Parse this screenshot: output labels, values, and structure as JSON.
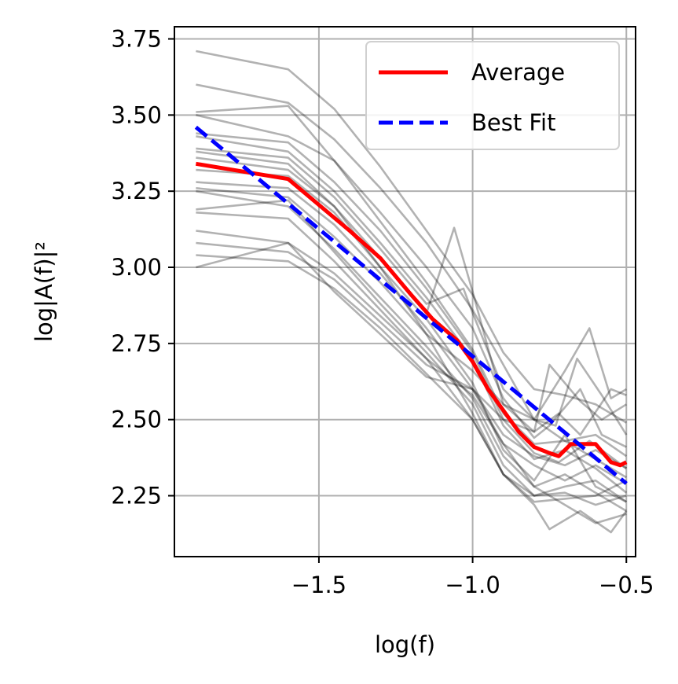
{
  "chart_data": {
    "type": "line",
    "xlabel": "log(f)",
    "ylabel": "log|A(f)|²",
    "xlim": [
      -1.97,
      -0.47
    ],
    "ylim": [
      2.05,
      3.79
    ],
    "xticks": [
      -1.5,
      -1.0,
      -0.5
    ],
    "xtick_labels": [
      "−1.5",
      "−1.0",
      "−0.5"
    ],
    "yticks": [
      2.25,
      2.5,
      2.75,
      3.0,
      3.25,
      3.5,
      3.75
    ],
    "ytick_labels": [
      "2.25",
      "2.50",
      "2.75",
      "3.00",
      "3.25",
      "3.50",
      "3.75"
    ],
    "grid": true,
    "legend_position": "top-right",
    "series": [
      {
        "name": "Average",
        "color": "#ff0000",
        "style": "solid",
        "points": [
          [
            -1.9,
            3.34
          ],
          [
            -1.6,
            3.29
          ],
          [
            -1.4,
            3.12
          ],
          [
            -1.3,
            3.03
          ],
          [
            -1.2,
            2.91
          ],
          [
            -1.13,
            2.83
          ],
          [
            -1.05,
            2.76
          ],
          [
            -1.0,
            2.69
          ],
          [
            -0.95,
            2.6
          ],
          [
            -0.9,
            2.53
          ],
          [
            -0.85,
            2.46
          ],
          [
            -0.8,
            2.41
          ],
          [
            -0.75,
            2.39
          ],
          [
            -0.72,
            2.38
          ],
          [
            -0.68,
            2.42
          ],
          [
            -0.65,
            2.42
          ],
          [
            -0.6,
            2.42
          ],
          [
            -0.55,
            2.36
          ],
          [
            -0.52,
            2.35
          ],
          [
            -0.5,
            2.36
          ]
        ]
      },
      {
        "name": "Best Fit",
        "color": "#0000ff",
        "style": "dashed",
        "points": [
          [
            -1.9,
            3.46
          ],
          [
            -0.5,
            2.29
          ]
        ]
      }
    ],
    "background_series_color": "#000000",
    "background_series": [
      [
        [
          -1.9,
          3.71
        ],
        [
          -1.6,
          3.65
        ],
        [
          -1.45,
          3.52
        ],
        [
          -1.3,
          3.33
        ],
        [
          -1.15,
          3.12
        ],
        [
          -1.0,
          2.91
        ],
        [
          -0.9,
          2.72
        ],
        [
          -0.8,
          2.6
        ],
        [
          -0.7,
          2.58
        ],
        [
          -0.6,
          2.55
        ],
        [
          -0.5,
          2.49
        ]
      ],
      [
        [
          -1.9,
          3.6
        ],
        [
          -1.6,
          3.54
        ],
        [
          -1.45,
          3.42
        ],
        [
          -1.3,
          3.26
        ],
        [
          -1.15,
          3.08
        ],
        [
          -1.0,
          2.86
        ],
        [
          -0.9,
          2.68
        ],
        [
          -0.8,
          2.5
        ],
        [
          -0.7,
          2.43
        ],
        [
          -0.6,
          2.45
        ],
        [
          -0.5,
          2.38
        ]
      ],
      [
        [
          -1.9,
          3.51
        ],
        [
          -1.6,
          3.53
        ],
        [
          -1.45,
          3.35
        ],
        [
          -1.3,
          3.18
        ],
        [
          -1.15,
          3.0
        ],
        [
          -1.0,
          2.8
        ],
        [
          -0.9,
          2.57
        ],
        [
          -0.8,
          2.44
        ],
        [
          -0.75,
          2.48
        ],
        [
          -0.65,
          2.6
        ],
        [
          -0.58,
          2.45
        ],
        [
          -0.5,
          2.41
        ]
      ],
      [
        [
          -1.9,
          3.5
        ],
        [
          -1.6,
          3.43
        ],
        [
          -1.45,
          3.35
        ],
        [
          -1.3,
          3.15
        ],
        [
          -1.15,
          2.95
        ],
        [
          -1.0,
          2.73
        ],
        [
          -0.9,
          2.52
        ],
        [
          -0.8,
          2.42
        ],
        [
          -0.7,
          2.43
        ],
        [
          -0.6,
          2.37
        ],
        [
          -0.5,
          2.31
        ]
      ],
      [
        [
          -1.9,
          3.44
        ],
        [
          -1.6,
          3.41
        ],
        [
          -1.45,
          3.28
        ],
        [
          -1.3,
          3.12
        ],
        [
          -1.15,
          2.93
        ],
        [
          -1.0,
          2.72
        ],
        [
          -0.9,
          2.5
        ],
        [
          -0.8,
          2.39
        ],
        [
          -0.72,
          2.36
        ],
        [
          -0.62,
          2.43
        ],
        [
          -0.5,
          2.34
        ]
      ],
      [
        [
          -1.9,
          3.43
        ],
        [
          -1.6,
          3.38
        ],
        [
          -1.45,
          3.25
        ],
        [
          -1.3,
          3.08
        ],
        [
          -1.15,
          2.9
        ],
        [
          -1.0,
          2.7
        ],
        [
          -0.9,
          2.48
        ],
        [
          -0.8,
          2.37
        ],
        [
          -0.7,
          2.4
        ],
        [
          -0.6,
          2.34
        ],
        [
          -0.5,
          2.26
        ]
      ],
      [
        [
          -1.9,
          3.39
        ],
        [
          -1.6,
          3.36
        ],
        [
          -1.45,
          3.23
        ],
        [
          -1.3,
          3.06
        ],
        [
          -1.15,
          2.88
        ],
        [
          -1.03,
          2.93
        ],
        [
          -1.0,
          2.85
        ],
        [
          -0.9,
          2.6
        ],
        [
          -0.8,
          2.5
        ],
        [
          -0.7,
          2.66
        ],
        [
          -0.62,
          2.8
        ],
        [
          -0.55,
          2.57
        ],
        [
          -0.5,
          2.6
        ]
      ],
      [
        [
          -1.9,
          3.36
        ],
        [
          -1.6,
          3.32
        ],
        [
          -1.45,
          3.2
        ],
        [
          -1.3,
          3.03
        ],
        [
          -1.15,
          2.85
        ],
        [
          -1.06,
          3.13
        ],
        [
          -1.0,
          2.92
        ],
        [
          -0.9,
          2.55
        ],
        [
          -0.8,
          2.46
        ],
        [
          -0.75,
          2.68
        ],
        [
          -0.65,
          2.56
        ],
        [
          -0.58,
          2.5
        ],
        [
          -0.5,
          2.55
        ]
      ],
      [
        [
          -1.9,
          3.32
        ],
        [
          -1.6,
          3.3
        ],
        [
          -1.45,
          3.18
        ],
        [
          -1.3,
          3.0
        ],
        [
          -1.15,
          2.83
        ],
        [
          -1.0,
          2.62
        ],
        [
          -0.9,
          2.4
        ],
        [
          -0.8,
          2.3
        ],
        [
          -0.7,
          2.45
        ],
        [
          -0.6,
          2.28
        ],
        [
          -0.5,
          2.23
        ]
      ],
      [
        [
          -1.9,
          3.28
        ],
        [
          -1.6,
          3.26
        ],
        [
          -1.45,
          3.14
        ],
        [
          -1.3,
          2.98
        ],
        [
          -1.15,
          2.8
        ],
        [
          -1.0,
          2.6
        ],
        [
          -0.9,
          2.42
        ],
        [
          -0.8,
          2.35
        ],
        [
          -0.7,
          2.3
        ],
        [
          -0.6,
          2.35
        ],
        [
          -0.5,
          2.29
        ]
      ],
      [
        [
          -1.9,
          3.26
        ],
        [
          -1.6,
          3.23
        ],
        [
          -1.45,
          3.1
        ],
        [
          -1.3,
          2.95
        ],
        [
          -1.15,
          2.78
        ],
        [
          -1.0,
          2.66
        ],
        [
          -0.9,
          2.55
        ],
        [
          -0.8,
          2.5
        ],
        [
          -0.73,
          2.48
        ],
        [
          -0.66,
          2.7
        ],
        [
          -0.58,
          2.58
        ],
        [
          -0.5,
          2.45
        ]
      ],
      [
        [
          -1.9,
          3.25
        ],
        [
          -1.6,
          3.2
        ],
        [
          -1.45,
          3.06
        ],
        [
          -1.3,
          2.9
        ],
        [
          -1.15,
          2.74
        ],
        [
          -1.0,
          2.57
        ],
        [
          -0.9,
          2.38
        ],
        [
          -0.8,
          2.28
        ],
        [
          -0.7,
          2.32
        ],
        [
          -0.6,
          2.26
        ],
        [
          -0.5,
          2.2
        ]
      ],
      [
        [
          -1.9,
          3.19
        ],
        [
          -1.6,
          3.22
        ],
        [
          -1.45,
          3.05
        ],
        [
          -1.3,
          2.88
        ],
        [
          -1.15,
          2.72
        ],
        [
          -1.0,
          2.55
        ],
        [
          -0.9,
          2.35
        ],
        [
          -0.8,
          2.25
        ],
        [
          -0.7,
          2.28
        ],
        [
          -0.6,
          2.3
        ],
        [
          -0.5,
          2.23
        ]
      ],
      [
        [
          -1.9,
          3.18
        ],
        [
          -1.6,
          3.16
        ],
        [
          -1.45,
          3.02
        ],
        [
          -1.3,
          2.86
        ],
        [
          -1.15,
          2.7
        ],
        [
          -1.0,
          2.5
        ],
        [
          -0.9,
          2.32
        ],
        [
          -0.8,
          2.22
        ],
        [
          -0.75,
          2.14
        ],
        [
          -0.65,
          2.2
        ],
        [
          -0.55,
          2.13
        ],
        [
          -0.5,
          2.2
        ]
      ],
      [
        [
          -1.9,
          3.12
        ],
        [
          -1.6,
          3.08
        ],
        [
          -1.45,
          2.98
        ],
        [
          -1.3,
          2.84
        ],
        [
          -1.15,
          2.7
        ],
        [
          -1.0,
          2.58
        ],
        [
          -0.9,
          2.42
        ],
        [
          -0.8,
          2.28
        ],
        [
          -0.7,
          2.22
        ],
        [
          -0.6,
          2.16
        ],
        [
          -0.5,
          2.19
        ]
      ],
      [
        [
          -1.9,
          3.08
        ],
        [
          -1.6,
          3.05
        ],
        [
          -1.45,
          2.96
        ],
        [
          -1.3,
          2.82
        ],
        [
          -1.15,
          2.68
        ],
        [
          -1.0,
          2.6
        ],
        [
          -0.9,
          2.45
        ],
        [
          -0.8,
          2.38
        ],
        [
          -0.7,
          2.35
        ],
        [
          -0.6,
          2.4
        ],
        [
          -0.5,
          2.34
        ]
      ],
      [
        [
          -1.9,
          3.04
        ],
        [
          -1.6,
          3.02
        ],
        [
          -1.45,
          2.93
        ],
        [
          -1.3,
          2.8
        ],
        [
          -1.15,
          2.65
        ],
        [
          -1.0,
          2.5
        ],
        [
          -0.9,
          2.32
        ],
        [
          -0.8,
          2.25
        ],
        [
          -0.7,
          2.26
        ],
        [
          -0.6,
          2.22
        ],
        [
          -0.5,
          2.25
        ]
      ],
      [
        [
          -1.9,
          3.0
        ],
        [
          -1.6,
          3.08
        ],
        [
          -1.45,
          2.92
        ],
        [
          -1.3,
          2.78
        ],
        [
          -1.15,
          2.64
        ],
        [
          -1.0,
          2.6
        ],
        [
          -0.9,
          2.5
        ],
        [
          -0.8,
          2.46
        ],
        [
          -0.72,
          2.52
        ],
        [
          -0.65,
          2.45
        ],
        [
          -0.55,
          2.6
        ],
        [
          -0.5,
          2.58
        ]
      ],
      [
        [
          -1.9,
          3.38
        ],
        [
          -1.6,
          3.34
        ],
        [
          -1.45,
          3.2
        ],
        [
          -1.3,
          3.0
        ],
        [
          -1.15,
          2.78
        ],
        [
          -1.0,
          2.52
        ],
        [
          -0.9,
          2.32
        ],
        [
          -0.8,
          2.23
        ],
        [
          -0.7,
          2.24
        ],
        [
          -0.6,
          2.25
        ],
        [
          -0.5,
          2.3
        ]
      ]
    ]
  }
}
